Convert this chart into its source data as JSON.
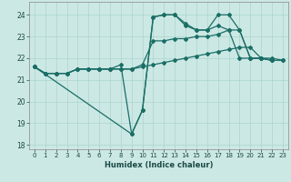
{
  "xlabel": "Humidex (Indice chaleur)",
  "xlim": [
    -0.5,
    23.5
  ],
  "ylim": [
    17.8,
    24.6
  ],
  "yticks": [
    18,
    19,
    20,
    21,
    22,
    23,
    24
  ],
  "xticks": [
    0,
    1,
    2,
    3,
    4,
    5,
    6,
    7,
    8,
    9,
    10,
    11,
    12,
    13,
    14,
    15,
    16,
    17,
    18,
    19,
    20,
    21,
    22,
    23
  ],
  "background_color": "#cce8e4",
  "grid_color": "#aad4ce",
  "line_color": "#1a6e66",
  "line1_x": [
    0,
    1,
    2,
    3,
    4,
    5,
    6,
    7,
    8,
    9,
    10,
    11,
    12,
    13,
    14,
    15,
    16,
    17,
    18,
    19,
    20,
    21,
    22,
    23
  ],
  "line1_y": [
    21.6,
    21.3,
    21.3,
    21.3,
    21.5,
    21.5,
    21.5,
    21.5,
    21.5,
    21.5,
    21.6,
    21.7,
    21.8,
    21.9,
    22.0,
    22.1,
    22.2,
    22.3,
    22.4,
    22.5,
    22.5,
    22.0,
    22.0,
    21.9
  ],
  "line2_x": [
    0,
    1,
    2,
    3,
    4,
    5,
    6,
    7,
    8,
    9,
    10,
    11,
    12,
    13,
    14,
    15,
    16,
    17,
    18,
    19,
    20,
    21,
    22
  ],
  "line2_y": [
    21.6,
    21.3,
    21.3,
    21.3,
    21.5,
    21.5,
    21.5,
    21.5,
    21.7,
    18.5,
    19.6,
    23.9,
    24.0,
    24.0,
    23.5,
    23.3,
    23.3,
    23.5,
    23.3,
    22.0,
    22.0,
    22.0,
    21.9
  ],
  "line3_x": [
    0,
    9,
    10,
    11,
    12,
    13,
    14,
    15,
    16,
    17,
    18,
    19,
    20,
    21,
    22
  ],
  "line3_y": [
    21.6,
    18.5,
    19.6,
    23.9,
    24.0,
    24.0,
    23.6,
    23.3,
    23.3,
    24.0,
    24.0,
    23.3,
    22.0,
    22.0,
    21.9
  ],
  "line4_x": [
    0,
    1,
    2,
    3,
    4,
    5,
    6,
    7,
    8,
    9,
    10,
    11,
    12,
    13,
    14,
    15,
    16,
    17,
    18,
    19,
    20,
    21,
    22,
    23
  ],
  "line4_y": [
    21.6,
    21.3,
    21.3,
    21.3,
    21.5,
    21.5,
    21.5,
    21.5,
    21.5,
    21.5,
    21.7,
    22.8,
    22.8,
    22.9,
    22.9,
    23.0,
    23.0,
    23.1,
    23.3,
    23.3,
    22.0,
    22.0,
    21.9,
    21.9
  ]
}
